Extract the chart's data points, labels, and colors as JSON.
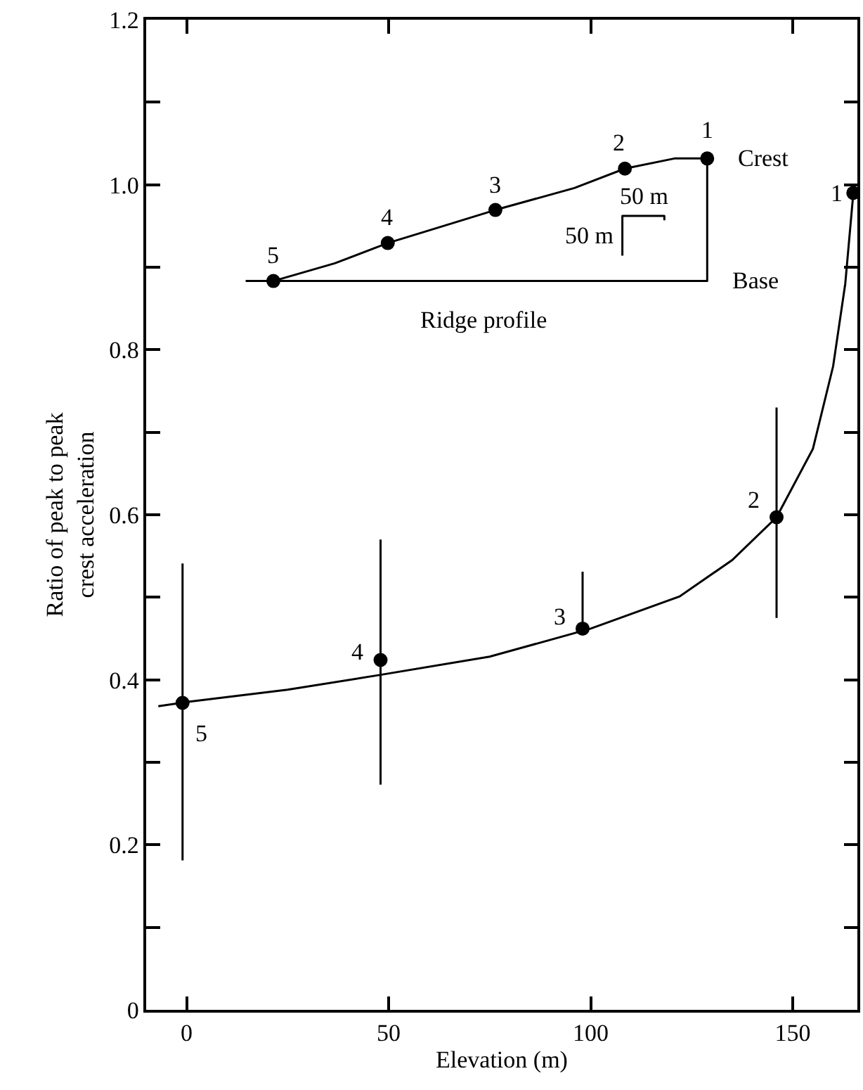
{
  "chart_data": {
    "type": "scatter",
    "xlabel": "Elevation (m)",
    "ylabel": "Ratio of peak to peak\ncrest acceleration",
    "xlim": [
      -10,
      166
    ],
    "ylim": [
      0,
      1.2
    ],
    "xticks": [
      0,
      50,
      100,
      150
    ],
    "yticks": [
      0,
      {
        "value": 0.1,
        "label": null
      },
      {
        "value": 0.2,
        "label": "0.2"
      },
      {
        "value": 0.3,
        "label": null
      },
      {
        "value": 0.4,
        "label": "0.4"
      },
      {
        "value": 0.5,
        "label": null
      },
      {
        "value": 0.6,
        "label": "0.6"
      },
      {
        "value": 0.7,
        "label": null
      },
      {
        "value": 0.8,
        "label": "0.8"
      },
      {
        "value": 0.9,
        "label": null
      },
      {
        "value": 1,
        "label": "1.0"
      },
      {
        "value": 1.1,
        "label": null
      },
      {
        "value": 1.2,
        "label": "1.2"
      }
    ],
    "marker": "circle",
    "series": [
      {
        "type": "line",
        "marker": "none",
        "color": "#000000",
        "x": [
          -7,
          0,
          25,
          48,
          75,
          100,
          122,
          135,
          146,
          155,
          160,
          163,
          165
        ],
        "values": [
          0.368,
          0.373,
          0.388,
          0.406,
          0.428,
          0.462,
          0.501,
          0.545,
          0.597,
          0.68,
          0.78,
          0.88,
          0.99
        ]
      },
      {
        "color": "#000000",
        "x": [
          -1,
          48,
          98,
          146,
          165
        ],
        "values": [
          0.372,
          0.424,
          0.462,
          0.597,
          0.99
        ],
        "errors": [
          [
            0.181,
            0.541
          ],
          [
            0.273,
            0.57
          ],
          [
            0.462,
            0.531
          ],
          [
            0.475,
            0.73
          ],
          null
        ]
      }
    ],
    "annotations": [
      {
        "text": "5",
        "x": -1,
        "y": 0.372
      },
      {
        "text": "4",
        "x": 48,
        "y": 0.424
      },
      {
        "text": "3",
        "x": 98,
        "y": 0.462
      },
      {
        "text": "2",
        "x": 146,
        "y": 0.597
      },
      {
        "text": "1",
        "x": 165,
        "y": 0.99
      },
      "5",
      "4",
      "3",
      "2",
      "1",
      "Crest",
      "Base",
      "50 m",
      "50 m",
      "Ridge profile"
    ]
  }
}
